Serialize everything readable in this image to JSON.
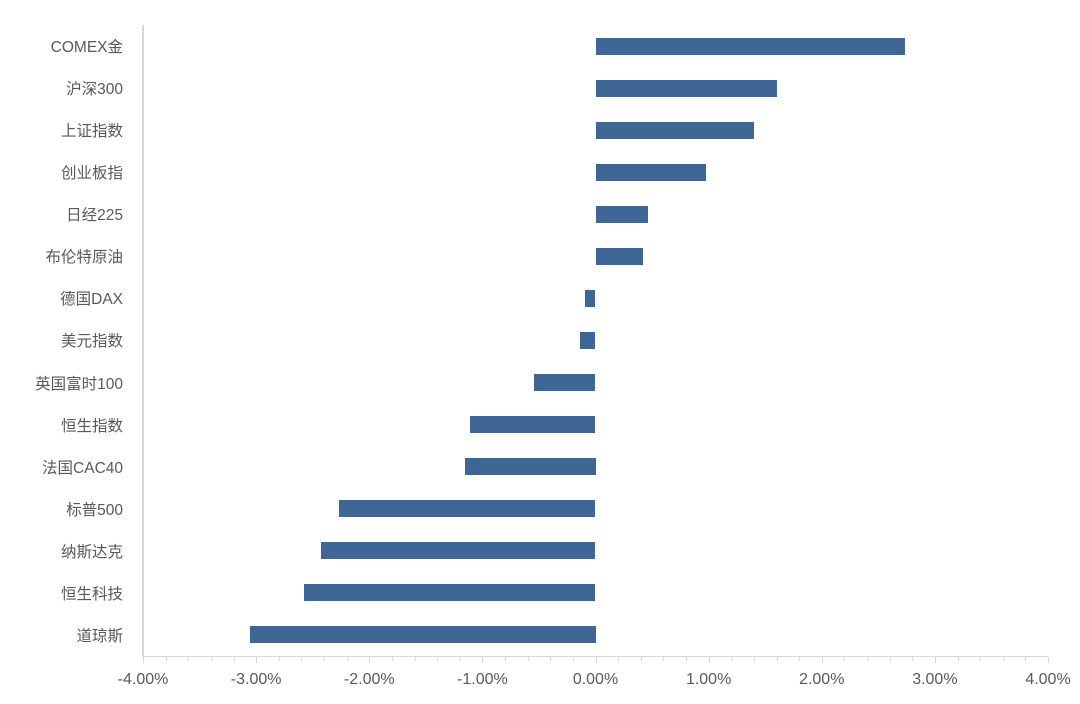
{
  "chart_data": {
    "type": "bar",
    "orientation": "horizontal",
    "title": "",
    "categories": [
      "COMEX金",
      "沪深300",
      "上证指数",
      "创业板指",
      "日经225",
      "布伦特原油",
      "德国DAX",
      "美元指数",
      "英国富时100",
      "恒生指数",
      "法国CAC40",
      "标普500",
      "纳斯达克",
      "恒生科技",
      "道琼斯"
    ],
    "values": [
      2.74,
      1.6,
      1.4,
      0.98,
      0.46,
      0.42,
      -0.09,
      -0.14,
      -0.54,
      -1.11,
      -1.15,
      -2.27,
      -2.43,
      -2.58,
      -3.05
    ],
    "value_unit": "percent",
    "xlabel": "",
    "ylabel": "",
    "xlim": [
      -4,
      4
    ],
    "x_major_tick_step": 1,
    "x_minor_tick_step": 0.2,
    "x_tick_labels": [
      "-4.00%",
      "-3.00%",
      "-2.00%",
      "-1.00%",
      "0.00%",
      "1.00%",
      "2.00%",
      "3.00%",
      "4.00%"
    ],
    "grid": "off",
    "legend": "none",
    "colors": {
      "bar": "#3e6795",
      "axis": "#d9d9d9",
      "text": "#595959",
      "background": "#ffffff"
    }
  }
}
